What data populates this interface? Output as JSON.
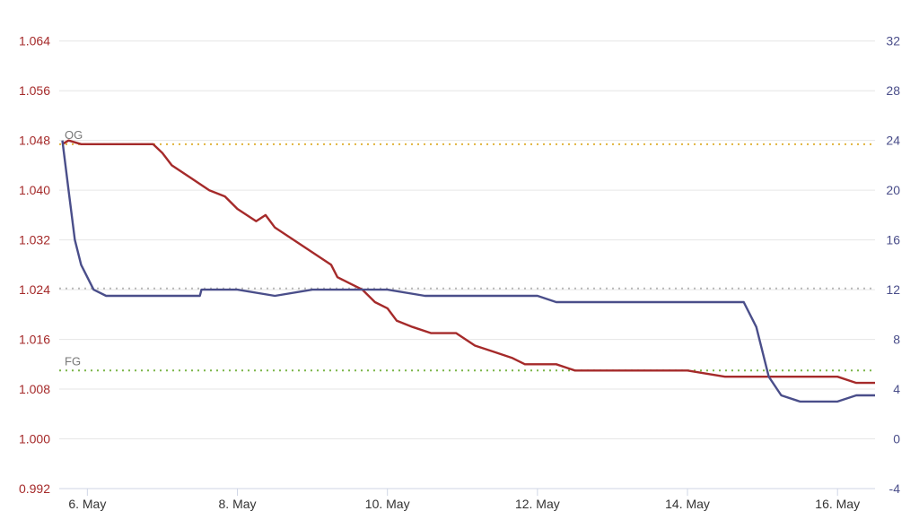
{
  "chart_data": {
    "type": "line",
    "title": "",
    "x_axis": {
      "type": "date",
      "range": [
        "2023-05-05T15:00",
        "2023-05-16T12:00"
      ],
      "tick_labels": [
        "6. May",
        "8. May",
        "10. May",
        "12. May",
        "14. May",
        "16. May"
      ]
    },
    "y_left": {
      "ylim": [
        0.992,
        1.068
      ],
      "ticks": [
        "0.992",
        "1.000",
        "1.008",
        "1.016",
        "1.024",
        "1.032",
        "1.040",
        "1.048",
        "1.056",
        "1.064"
      ],
      "color": "#a52a2a"
    },
    "y_right": {
      "ylim": [
        -4,
        34
      ],
      "ticks": [
        "-4",
        "0",
        "4",
        "8",
        "12",
        "16",
        "20",
        "24",
        "28",
        "32"
      ],
      "color": "#4a4e8a"
    },
    "grid": true,
    "legend": "none",
    "reference_lines": [
      {
        "label": "OG",
        "axis": "left",
        "value": 1.0474,
        "color": "#e0b43c"
      },
      {
        "label": "",
        "axis": "left",
        "value": 1.0242,
        "color": "#b8b8b8"
      },
      {
        "label": "FG",
        "axis": "left",
        "value": 1.011,
        "color": "#7ab648"
      }
    ],
    "series": [
      {
        "axis": "left",
        "color": "#a52a2a",
        "points": [
          [
            "2023-05-05T16:00",
            1.0474
          ],
          [
            "2023-05-05T18:00",
            1.048
          ],
          [
            "2023-05-05T22:00",
            1.0474
          ],
          [
            "2023-05-06T12:00",
            1.0474
          ],
          [
            "2023-05-06T21:00",
            1.0474
          ],
          [
            "2023-05-07T00:00",
            1.046
          ],
          [
            "2023-05-07T03:00",
            1.044
          ],
          [
            "2023-05-07T09:00",
            1.042
          ],
          [
            "2023-05-07T15:00",
            1.04
          ],
          [
            "2023-05-07T20:00",
            1.039
          ],
          [
            "2023-05-08T00:00",
            1.037
          ],
          [
            "2023-05-08T06:00",
            1.035
          ],
          [
            "2023-05-08T09:00",
            1.036
          ],
          [
            "2023-05-08T12:00",
            1.034
          ],
          [
            "2023-05-08T18:00",
            1.032
          ],
          [
            "2023-05-09T00:00",
            1.03
          ],
          [
            "2023-05-09T06:00",
            1.028
          ],
          [
            "2023-05-09T08:00",
            1.026
          ],
          [
            "2023-05-09T12:00",
            1.025
          ],
          [
            "2023-05-09T16:00",
            1.024
          ],
          [
            "2023-05-09T20:00",
            1.022
          ],
          [
            "2023-05-10T00:00",
            1.021
          ],
          [
            "2023-05-10T03:00",
            1.019
          ],
          [
            "2023-05-10T08:00",
            1.018
          ],
          [
            "2023-05-10T14:00",
            1.017
          ],
          [
            "2023-05-10T22:00",
            1.017
          ],
          [
            "2023-05-11T04:00",
            1.015
          ],
          [
            "2023-05-11T10:00",
            1.014
          ],
          [
            "2023-05-11T16:00",
            1.013
          ],
          [
            "2023-05-11T20:00",
            1.012
          ],
          [
            "2023-05-12T06:00",
            1.012
          ],
          [
            "2023-05-12T12:00",
            1.011
          ],
          [
            "2023-05-13T06:00",
            1.011
          ],
          [
            "2023-05-14T00:00",
            1.011
          ],
          [
            "2023-05-14T12:00",
            1.01
          ],
          [
            "2023-05-15T00:00",
            1.01
          ],
          [
            "2023-05-16T00:00",
            1.01
          ],
          [
            "2023-05-16T06:00",
            1.009
          ],
          [
            "2023-05-16T12:00",
            1.009
          ]
        ]
      },
      {
        "axis": "right",
        "color": "#4a4e8a",
        "points": [
          [
            "2023-05-05T16:00",
            24
          ],
          [
            "2023-05-05T18:00",
            20
          ],
          [
            "2023-05-05T20:00",
            16
          ],
          [
            "2023-05-05T22:00",
            14
          ],
          [
            "2023-05-06T02:00",
            12
          ],
          [
            "2023-05-06T06:00",
            11.5
          ],
          [
            "2023-05-06T12:00",
            11.5
          ],
          [
            "2023-05-07T12:00",
            11.5
          ],
          [
            "2023-05-07T12:30",
            12
          ],
          [
            "2023-05-08T00:00",
            12
          ],
          [
            "2023-05-08T12:00",
            11.5
          ],
          [
            "2023-05-09T00:00",
            12
          ],
          [
            "2023-05-09T12:00",
            12
          ],
          [
            "2023-05-10T00:00",
            12
          ],
          [
            "2023-05-10T12:00",
            11.5
          ],
          [
            "2023-05-11T00:00",
            11.5
          ],
          [
            "2023-05-12T00:00",
            11.5
          ],
          [
            "2023-05-12T06:00",
            11
          ],
          [
            "2023-05-13T00:00",
            11
          ],
          [
            "2023-05-14T00:00",
            11
          ],
          [
            "2023-05-14T12:00",
            11
          ],
          [
            "2023-05-14T18:00",
            11
          ],
          [
            "2023-05-14T22:00",
            9
          ],
          [
            "2023-05-15T02:00",
            5
          ],
          [
            "2023-05-15T06:00",
            3.5
          ],
          [
            "2023-05-15T12:00",
            3
          ],
          [
            "2023-05-16T00:00",
            3
          ],
          [
            "2023-05-16T06:00",
            3.5
          ],
          [
            "2023-05-16T12:00",
            3.5
          ]
        ]
      }
    ]
  }
}
